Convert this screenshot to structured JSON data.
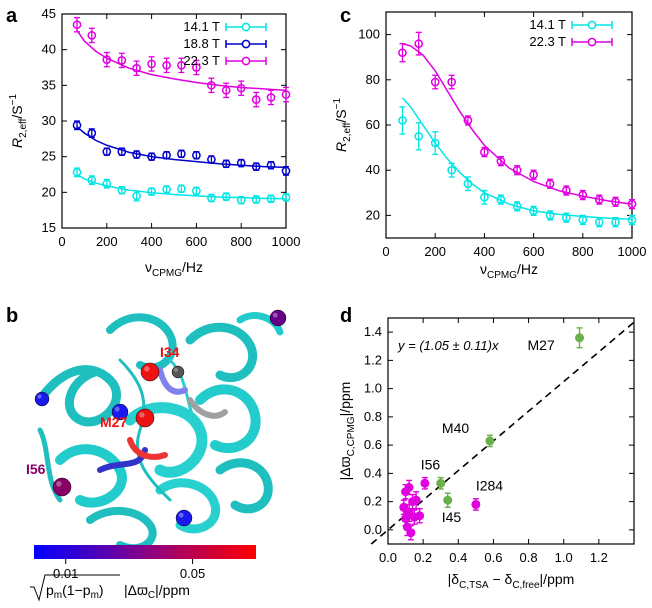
{
  "figure": {
    "panel_labels": [
      "a",
      "b",
      "c",
      "d"
    ]
  },
  "chart_data": [
    {
      "panel": "a",
      "type": "scatter",
      "title": "",
      "xlabel_main": "ν",
      "xlabel_sub": "CPMG",
      "xlabel_unit": "/Hz",
      "ylabel_main": "R",
      "ylabel_sub": "2,eff",
      "ylabel_unit": "/S",
      "ylabel_sup": "−1",
      "xlim": [
        0,
        1000
      ],
      "ylim": [
        15,
        45
      ],
      "xticks": [
        0,
        200,
        400,
        600,
        800,
        1000
      ],
      "yticks": [
        15,
        20,
        25,
        30,
        35,
        40,
        45
      ],
      "legend_position": "top-right",
      "series": [
        {
          "name": "14.1 T",
          "color": "#00e5e5",
          "x": [
            67,
            133,
            200,
            267,
            333,
            400,
            467,
            533,
            600,
            667,
            733,
            800,
            867,
            933,
            1000
          ],
          "y": [
            22.8,
            21.7,
            21.2,
            20.3,
            19.5,
            20.1,
            20.4,
            20.5,
            20.2,
            19.2,
            19.4,
            18.9,
            19.0,
            19.1,
            19.3
          ],
          "err": [
            0.6,
            0.6,
            0.6,
            0.5,
            0.7,
            0.5,
            0.5,
            0.5,
            0.5,
            0.5,
            0.5,
            0.5,
            0.5,
            0.5,
            0.5
          ],
          "fit": [
            [
              67,
              22.5
            ],
            [
              100,
              21.9
            ],
            [
              150,
              21.3
            ],
            [
              200,
              20.9
            ],
            [
              300,
              20.3
            ],
            [
              400,
              19.95
            ],
            [
              500,
              19.7
            ],
            [
              600,
              19.5
            ],
            [
              700,
              19.35
            ],
            [
              800,
              19.25
            ],
            [
              900,
              19.15
            ],
            [
              1000,
              19.1
            ]
          ]
        },
        {
          "name": "18.8 T",
          "color": "#0000cc",
          "x": [
            67,
            133,
            200,
            267,
            333,
            400,
            467,
            533,
            600,
            667,
            733,
            800,
            867,
            933,
            1000
          ],
          "y": [
            29.4,
            28.3,
            25.7,
            25.7,
            25.3,
            25.0,
            25.2,
            25.4,
            25.2,
            24.6,
            24.0,
            24.1,
            23.6,
            23.8,
            23.0
          ],
          "err": [
            0.6,
            0.6,
            0.5,
            0.5,
            0.5,
            0.5,
            0.5,
            0.5,
            0.5,
            0.5,
            0.5,
            0.5,
            0.5,
            0.5,
            0.6
          ],
          "fit": [
            [
              67,
              29.2
            ],
            [
              100,
              28.3
            ],
            [
              150,
              27.3
            ],
            [
              200,
              26.6
            ],
            [
              300,
              25.6
            ],
            [
              400,
              25.0
            ],
            [
              500,
              24.6
            ],
            [
              600,
              24.3
            ],
            [
              700,
              24.0
            ],
            [
              800,
              23.8
            ],
            [
              900,
              23.6
            ],
            [
              1000,
              23.5
            ]
          ]
        },
        {
          "name": "22.3 T",
          "color": "#e000e0",
          "x": [
            67,
            133,
            200,
            267,
            333,
            400,
            467,
            533,
            600,
            667,
            733,
            800,
            867,
            933,
            1000
          ],
          "y": [
            43.5,
            42.0,
            38.6,
            38.5,
            37.4,
            38.0,
            37.8,
            37.8,
            37.5,
            35.0,
            34.3,
            34.6,
            33.0,
            33.3,
            33.7
          ],
          "err": [
            1.0,
            1.0,
            1.0,
            1.0,
            1.0,
            1.0,
            1.0,
            1.0,
            1.0,
            1.0,
            1.0,
            1.0,
            1.0,
            1.0,
            1.0
          ],
          "fit": [
            [
              67,
              42.7
            ],
            [
              100,
              41.2
            ],
            [
              150,
              39.8
            ],
            [
              200,
              38.8
            ],
            [
              300,
              37.4
            ],
            [
              400,
              36.5
            ],
            [
              500,
              35.9
            ],
            [
              600,
              35.4
            ],
            [
              700,
              35.0
            ],
            [
              800,
              34.7
            ],
            [
              900,
              34.5
            ],
            [
              1000,
              34.3
            ]
          ]
        }
      ]
    },
    {
      "panel": "c",
      "type": "scatter",
      "title": "",
      "xlabel_main": "ν",
      "xlabel_sub": "CPMG",
      "xlabel_unit": "/Hz",
      "ylabel_main": "R",
      "ylabel_sub": "2,eff",
      "ylabel_unit": "/S",
      "ylabel_sup": "−1",
      "xlim": [
        0,
        1000
      ],
      "ylim": [
        10,
        110
      ],
      "xticks": [
        0,
        200,
        400,
        600,
        800,
        1000
      ],
      "yticks": [
        20,
        40,
        60,
        80,
        100
      ],
      "legend_position": "top-right",
      "series": [
        {
          "name": "14.1 T",
          "color": "#00e5e5",
          "x": [
            67,
            133,
            200,
            267,
            333,
            400,
            467,
            533,
            600,
            667,
            733,
            800,
            867,
            933,
            1000
          ],
          "y": [
            62,
            55,
            52,
            40,
            34,
            28,
            27,
            24,
            22,
            20,
            19,
            18,
            17,
            17,
            18
          ],
          "err": [
            6,
            6,
            5,
            3,
            3,
            3,
            2,
            2,
            2,
            2,
            2,
            2,
            2,
            2,
            2
          ],
          "fit": [
            [
              67,
              72
            ],
            [
              100,
              68
            ],
            [
              150,
              60
            ],
            [
              200,
              52
            ],
            [
              250,
              45
            ],
            [
              300,
              39
            ],
            [
              350,
              34
            ],
            [
              400,
              30
            ],
            [
              500,
              25
            ],
            [
              600,
              22
            ],
            [
              700,
              20.5
            ],
            [
              800,
              19.5
            ],
            [
              900,
              18.8
            ],
            [
              1000,
              18.3
            ]
          ]
        },
        {
          "name": "22.3 T",
          "color": "#e000e0",
          "x": [
            67,
            133,
            200,
            267,
            333,
            400,
            467,
            533,
            600,
            667,
            733,
            800,
            867,
            933,
            1000
          ],
          "y": [
            92,
            96,
            79,
            79,
            62,
            48,
            44,
            40,
            38,
            34,
            31,
            29,
            27,
            26,
            25
          ],
          "err": [
            4,
            5,
            3,
            3,
            2,
            2,
            2,
            2,
            2,
            2,
            2,
            2,
            2,
            2,
            2
          ],
          "fit": [
            [
              67,
              96
            ],
            [
              100,
              95
            ],
            [
              150,
              91
            ],
            [
              200,
              84
            ],
            [
              250,
              75
            ],
            [
              300,
              66
            ],
            [
              350,
              58
            ],
            [
              400,
              51
            ],
            [
              500,
              41
            ],
            [
              600,
              35
            ],
            [
              700,
              31
            ],
            [
              800,
              28.5
            ],
            [
              900,
              26.5
            ],
            [
              1000,
              25
            ]
          ]
        }
      ]
    },
    {
      "panel": "d",
      "type": "scatter",
      "title": "",
      "xlabel": "|δC,TSA − δC,free|/ppm",
      "ylabel": "|ΔϖC,CPMG|/ppm",
      "xlabel_text": "|δ",
      "xlabel_sub1": "C,TSA",
      "xlabel_mid": " − δ",
      "xlabel_sub2": "C,free",
      "xlabel_end": "|/ppm",
      "ylabel_text": "|Δϖ",
      "ylabel_sub": "C,CPMG",
      "ylabel_end": "|/ppm",
      "xlim": [
        0,
        1.4
      ],
      "ylim": [
        -0.1,
        1.5
      ],
      "xticks": [
        0,
        0.2,
        0.4,
        0.6,
        0.8,
        1.0,
        1.2
      ],
      "xtick_labels": [
        "0.0",
        "0.2",
        "0.4",
        "0.6",
        "0.8",
        "1.0",
        "1.2"
      ],
      "yticks": [
        0,
        0.2,
        0.4,
        0.6,
        0.8,
        1.0,
        1.2,
        1.4
      ],
      "ytick_labels": [
        "0.0",
        "0.2",
        "0.4",
        "0.6",
        "0.8",
        "1.0",
        "1.2",
        "1.4"
      ],
      "fit_equation": "y = (1.05 ± 0.11)x",
      "fit_slope": 1.05,
      "series": [
        {
          "name": "labelled",
          "color": "#6ab04c",
          "points": [
            {
              "x": 1.09,
              "y": 1.36,
              "err": 0.07,
              "label": "M27"
            },
            {
              "x": 0.58,
              "y": 0.63,
              "err": 0.04,
              "label": "M40"
            },
            {
              "x": 0.3,
              "y": 0.33,
              "err": 0.04,
              "label": "I56"
            },
            {
              "x": 0.34,
              "y": 0.21,
              "err": 0.05,
              "label": "I45"
            }
          ]
        },
        {
          "name": "other",
          "color": "#e000e0",
          "points": [
            {
              "x": 0.5,
              "y": 0.18,
              "err": 0.04,
              "label": "I284"
            },
            {
              "x": 0.21,
              "y": 0.33,
              "err": 0.04
            },
            {
              "x": 0.12,
              "y": 0.3,
              "err": 0.05
            },
            {
              "x": 0.1,
              "y": 0.27,
              "err": 0.05
            },
            {
              "x": 0.14,
              "y": 0.2,
              "err": 0.05
            },
            {
              "x": 0.16,
              "y": 0.21,
              "err": 0.06
            },
            {
              "x": 0.12,
              "y": 0.12,
              "err": 0.06
            },
            {
              "x": 0.15,
              "y": 0.09,
              "err": 0.05
            },
            {
              "x": 0.18,
              "y": 0.1,
              "err": 0.05
            },
            {
              "x": 0.1,
              "y": 0.08,
              "err": 0.05
            },
            {
              "x": 0.11,
              "y": 0.02,
              "err": 0.06
            },
            {
              "x": 0.13,
              "y": -0.02,
              "err": 0.05
            },
            {
              "x": 0.09,
              "y": 0.16,
              "err": 0.05
            }
          ]
        }
      ]
    },
    {
      "panel": "b",
      "type": "diagram",
      "description_labels": [
        "I34",
        "M27",
        "I56"
      ],
      "colorbar": {
        "ticks": [
          "0.01",
          "0.05"
        ],
        "tick_values": [
          0.01,
          0.05
        ],
        "range": [
          0,
          0.07
        ],
        "colors": [
          "#0000ff",
          "#880088",
          "#ff0000"
        ],
        "label_unit": "/ppm",
        "label_main": "p",
        "label_sub": "m",
        "label_mid": "(1−p",
        "label_end": ")",
        "label_abs": "|Δϖ",
        "label_abs_sub": "C",
        "label_abs_end": "|"
      },
      "spheres": [
        {
          "name": "I34",
          "color": "#ee1111",
          "value": 0.06
        },
        {
          "name": "M27",
          "color": "#ee1111",
          "value": 0.06
        },
        {
          "name": "I56",
          "color": "#880066",
          "value": 0.035
        },
        {
          "name": "residue-a",
          "color": "#1a1aee",
          "value": 0.01
        },
        {
          "name": "residue-b",
          "color": "#1a1aee",
          "value": 0.01
        },
        {
          "name": "residue-c",
          "color": "#1a1aee",
          "value": 0.01
        },
        {
          "name": "residue-d",
          "color": "#660088",
          "value": 0.03
        },
        {
          "name": "residue-e",
          "color": "#555555",
          "value": 0.0
        }
      ]
    }
  ]
}
